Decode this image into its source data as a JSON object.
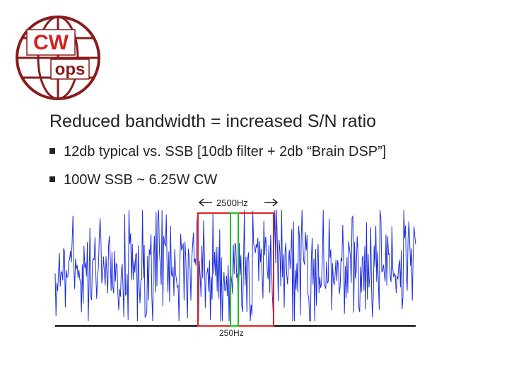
{
  "logo": {
    "top": "CW",
    "bottom": "ops"
  },
  "title": "Reduced bandwidth = increased S/N ratio",
  "bullets": [
    "12db typical vs. SSB [10db filter + 2db “Brain DSP”]",
    "100W SSB ~ 6.25W CW"
  ],
  "figure": {
    "wide_label": "2500Hz",
    "narrow_label": "250Hz"
  }
}
